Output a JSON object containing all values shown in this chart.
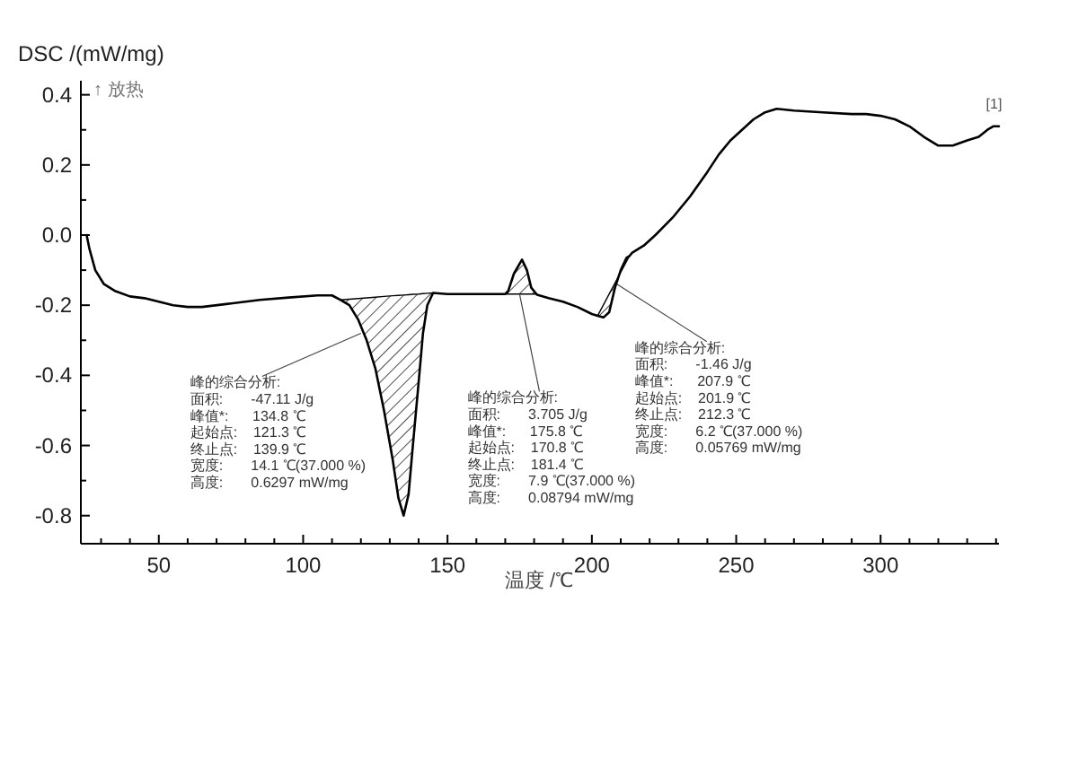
{
  "chart_data": {
    "type": "line",
    "ylabel": "DSC /(mW/mg)",
    "xlabel": "温度 /℃",
    "xlim": [
      23,
      341
    ],
    "ylim": [
      -0.88,
      0.44
    ],
    "xticks": [
      {
        "value": 30,
        "label": null
      },
      {
        "value": 40,
        "label": null
      },
      50,
      {
        "value": 60,
        "label": null
      },
      {
        "value": 70,
        "label": null
      },
      {
        "value": 80,
        "label": null
      },
      {
        "value": 90,
        "label": null
      },
      100,
      {
        "value": 110,
        "label": null
      },
      {
        "value": 120,
        "label": null
      },
      {
        "value": 130,
        "label": null
      },
      {
        "value": 140,
        "label": null
      },
      150,
      {
        "value": 160,
        "label": null
      },
      {
        "value": 170,
        "label": null
      },
      {
        "value": 180,
        "label": null
      },
      {
        "value": 190,
        "label": null
      },
      200,
      {
        "value": 210,
        "label": null
      },
      {
        "value": 220,
        "label": null
      },
      {
        "value": 230,
        "label": null
      },
      {
        "value": 240,
        "label": null
      },
      250,
      {
        "value": 260,
        "label": null
      },
      {
        "value": 270,
        "label": null
      },
      {
        "value": 280,
        "label": null
      },
      {
        "value": 290,
        "label": null
      },
      300,
      {
        "value": 310,
        "label": null
      },
      {
        "value": 320,
        "label": null
      },
      {
        "value": 330,
        "label": null
      },
      {
        "value": 340,
        "label": null
      }
    ],
    "yticks": [
      {
        "value": -0.8,
        "label": "-0.8"
      },
      {
        "value": -0.7,
        "label": null
      },
      {
        "value": -0.6,
        "label": "-0.6"
      },
      {
        "value": -0.5,
        "label": null
      },
      {
        "value": -0.4,
        "label": "-0.4"
      },
      {
        "value": -0.3,
        "label": null
      },
      {
        "value": -0.2,
        "label": "-0.2"
      },
      {
        "value": -0.1,
        "label": null
      },
      {
        "value": 0,
        "label": "0.0"
      },
      {
        "value": 0.1,
        "label": null
      },
      0.2,
      {
        "value": 0.3,
        "label": null
      },
      0.4
    ],
    "grid": false,
    "line_style": "solid",
    "marker": "none",
    "series": [
      {
        "color": "#000000",
        "x": [
          25,
          26,
          28,
          31,
          35,
          40,
          45,
          50,
          55,
          60,
          65,
          75,
          85,
          95,
          105,
          110,
          113,
          116,
          119,
          122,
          125,
          128,
          131,
          133,
          134.8,
          136.5,
          138,
          140,
          141.5,
          143,
          145,
          150,
          160,
          170,
          171,
          173,
          175.8,
          177.5,
          179,
          181,
          185,
          190,
          195,
          200,
          202,
          204,
          206,
          208,
          210,
          212,
          213,
          214,
          218,
          222,
          228,
          234,
          240,
          244,
          248,
          252,
          256,
          260,
          264,
          270,
          280,
          290,
          295,
          300,
          305,
          310,
          315,
          320,
          325,
          330,
          334,
          337,
          339,
          341
        ],
        "values": [
          0.0,
          -0.04,
          -0.1,
          -0.14,
          -0.16,
          -0.175,
          -0.18,
          -0.19,
          -0.2,
          -0.205,
          -0.205,
          -0.195,
          -0.185,
          -0.178,
          -0.172,
          -0.172,
          -0.185,
          -0.2,
          -0.24,
          -0.3,
          -0.38,
          -0.5,
          -0.64,
          -0.75,
          -0.8,
          -0.74,
          -0.6,
          -0.42,
          -0.28,
          -0.2,
          -0.165,
          -0.168,
          -0.168,
          -0.168,
          -0.16,
          -0.11,
          -0.07,
          -0.1,
          -0.15,
          -0.17,
          -0.18,
          -0.19,
          -0.205,
          -0.225,
          -0.23,
          -0.235,
          -0.22,
          -0.15,
          -0.1,
          -0.065,
          -0.06,
          -0.05,
          -0.03,
          0.0,
          0.05,
          0.11,
          0.18,
          0.23,
          0.27,
          0.3,
          0.33,
          0.35,
          0.36,
          0.355,
          0.35,
          0.345,
          0.345,
          0.34,
          0.33,
          0.31,
          0.28,
          0.255,
          0.255,
          0.27,
          0.28,
          0.3,
          0.31,
          0.31
        ]
      },
      {
        "color": "#000000",
        "x": [
          113,
          116,
          119,
          122,
          125,
          128,
          131,
          133,
          134.8,
          136.5,
          138,
          140,
          141.5,
          143,
          145
        ],
        "values": [
          -0.185,
          -0.183,
          -0.181,
          -0.179,
          -0.177,
          -0.175,
          -0.173,
          -0.172,
          -0.171,
          -0.17,
          -0.169,
          -0.168,
          -0.167,
          -0.166,
          -0.165
        ],
        "upper": [
          -0.185,
          -0.183,
          -0.181,
          -0.179,
          -0.177,
          -0.175,
          -0.173,
          -0.172,
          -0.171,
          -0.17,
          -0.169,
          -0.168,
          -0.167,
          -0.166,
          -0.165
        ],
        "lower": [
          -0.185,
          -0.2,
          -0.24,
          -0.3,
          -0.38,
          -0.5,
          -0.64,
          -0.75,
          -0.8,
          -0.74,
          -0.6,
          -0.42,
          -0.28,
          -0.2,
          -0.165
        ]
      },
      {
        "color": "#000000",
        "x": [
          170,
          171,
          173,
          175.8,
          177.5,
          179,
          181
        ],
        "values": [
          -0.168,
          -0.168,
          -0.168,
          -0.168,
          -0.168,
          -0.168,
          -0.168
        ],
        "lower": [
          -0.168,
          -0.168,
          -0.168,
          -0.168,
          -0.168,
          -0.168,
          -0.168
        ],
        "upper": [
          -0.168,
          -0.16,
          -0.11,
          -0.07,
          -0.1,
          -0.15,
          -0.168
        ]
      },
      {
        "color": "#000000",
        "x": [
          202,
          204,
          206,
          208,
          210,
          212,
          213
        ],
        "values": [
          -0.23,
          -0.199,
          -0.168,
          -0.137,
          -0.106,
          -0.075,
          -0.06
        ],
        "upper": [
          -0.23,
          -0.199,
          -0.168,
          -0.137,
          -0.106,
          -0.075,
          -0.06
        ],
        "lower": [
          -0.23,
          -0.235,
          -0.22,
          -0.15,
          -0.1,
          -0.075,
          -0.06
        ]
      }
    ],
    "annotations": [
      "↑ 放热",
      {
        "text": "峰的综合分析:\n面积:       -47.11 J/g\n峰值*:      134.8 ℃\n起始点:    121.3 ℃\n终止点:    139.9 ℃\n宽度:       14.1 ℃(37.000 %)\n高度:       0.6297 mW/mg",
        "x": 120,
        "y": -0.28
      },
      {
        "text": "峰的综合分析:\n面积:       3.705 J/g\n峰值*:      175.8 ℃\n起始点:    170.8 ℃\n终止点:    181.4 ℃\n宽度:       7.9 ℃(37.000 %)\n高度:       0.08794 mW/mg",
        "x": 175,
        "y": -0.17
      },
      {
        "text": "峰的综合分析:\n面积:       -1.46 J/g\n峰值*:      207.9 ℃\n起始点:    201.9 ℃\n终止点:    212.3 ℃\n宽度:       6.2 ℃(37.000 %)\n高度:       0.05769 mW/mg",
        "x": 208.7,
        "y": -0.14
      },
      {
        "text": "[1]",
        "x": 339,
        "y": 0.33
      }
    ]
  }
}
